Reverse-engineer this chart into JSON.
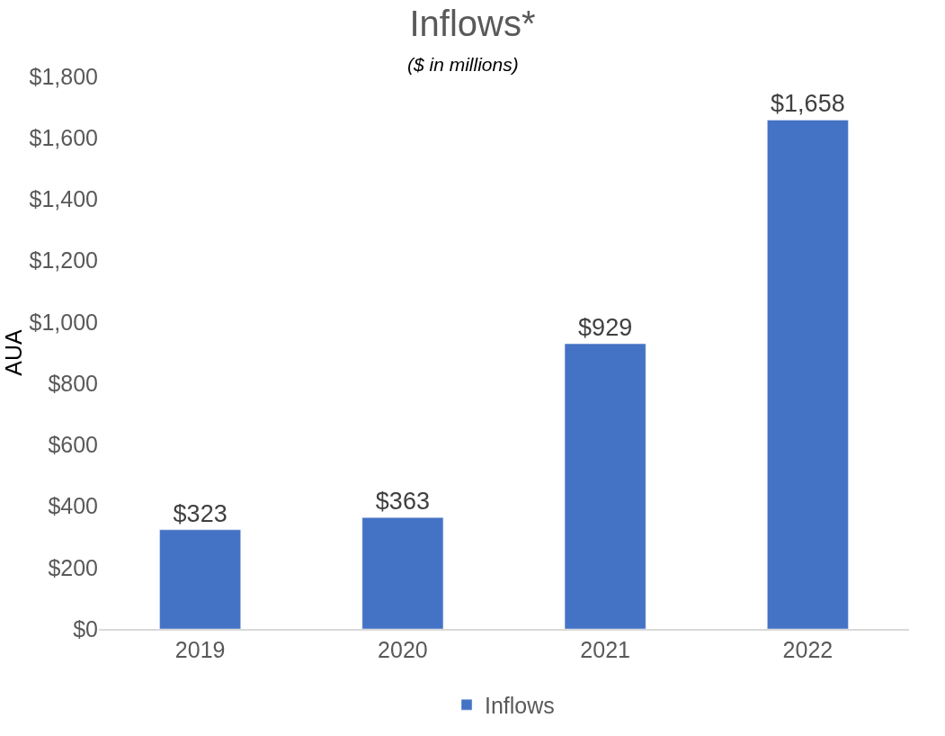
{
  "chart_data": {
    "type": "bar",
    "title": "Inflows*",
    "subtitle": "($ in millions)",
    "ylabel": "AUA",
    "categories": [
      "2019",
      "2020",
      "2021",
      "2022"
    ],
    "series": [
      {
        "name": "Inflows",
        "color": "#4472c4",
        "values": [
          323,
          363,
          929,
          1658
        ],
        "value_labels": [
          "$323",
          "$363",
          "$929",
          "$1,658"
        ]
      }
    ],
    "ylim": [
      0,
      1800
    ],
    "yticks": [
      {
        "value": 0,
        "label": "$0"
      },
      {
        "value": 200,
        "label": "$200"
      },
      {
        "value": 400,
        "label": "$400"
      },
      {
        "value": 600,
        "label": "$600"
      },
      {
        "value": 800,
        "label": "$800"
      },
      {
        "value": 1000,
        "label": "$1,000"
      },
      {
        "value": 1200,
        "label": "$1,200"
      },
      {
        "value": 1400,
        "label": "$1,400"
      },
      {
        "value": 1600,
        "label": "$1,600"
      },
      {
        "value": 1800,
        "label": "$1,800"
      }
    ],
    "legend": "bottom"
  }
}
